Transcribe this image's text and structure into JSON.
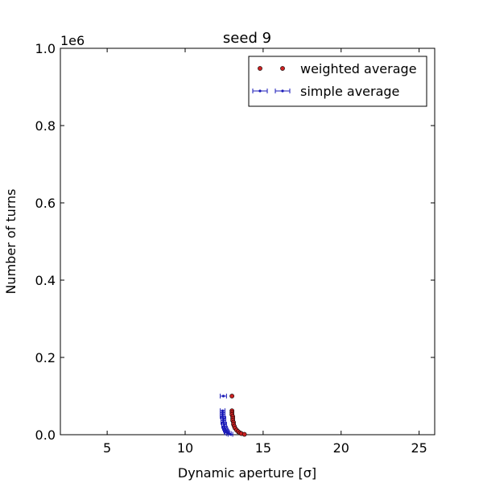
{
  "chart_data": {
    "type": "scatter",
    "title": "seed 9",
    "xlabel": "Dynamic aperture [σ]",
    "ylabel": "Number of turns",
    "y_offset_label": "1e6",
    "xlim": [
      2,
      26
    ],
    "ylim": [
      0,
      1000000
    ],
    "xticks": [
      5,
      10,
      15,
      20,
      25
    ],
    "xtick_labels": [
      "5",
      "10",
      "15",
      "20",
      "25"
    ],
    "yticks": [
      0,
      200000,
      400000,
      600000,
      800000,
      1000000
    ],
    "ytick_labels": [
      "0.0",
      "0.2",
      "0.4",
      "0.6",
      "0.8",
      "1.0"
    ],
    "legend_position": "top-right",
    "series": [
      {
        "name": "weighted average",
        "color": "#cc2222",
        "x": [
          13.0,
          13.0,
          13.0,
          13.0,
          13.05,
          13.05,
          13.05,
          13.1,
          13.1,
          13.15,
          13.2,
          13.3,
          13.4,
          13.5,
          13.6,
          13.8
        ],
        "y": [
          100000,
          62000,
          57000,
          52000,
          47000,
          42000,
          37000,
          32000,
          27000,
          22000,
          17000,
          12000,
          8000,
          5000,
          3000,
          1000
        ]
      },
      {
        "name": "simple average",
        "color": "#1a1ab8",
        "x": [
          12.45,
          12.4,
          12.4,
          12.4,
          12.4,
          12.45,
          12.45,
          12.45,
          12.5,
          12.5,
          12.55,
          12.6,
          12.65,
          12.7,
          12.8,
          12.9
        ],
        "y": [
          100000,
          62000,
          57000,
          52000,
          47000,
          42000,
          37000,
          32000,
          27000,
          22000,
          17000,
          12000,
          8000,
          5000,
          3000,
          1000
        ],
        "xerr": [
          0.2,
          0.15,
          0.15,
          0.15,
          0.15,
          0.15,
          0.15,
          0.15,
          0.15,
          0.15,
          0.15,
          0.15,
          0.15,
          0.15,
          0.15,
          0.15
        ]
      }
    ]
  }
}
